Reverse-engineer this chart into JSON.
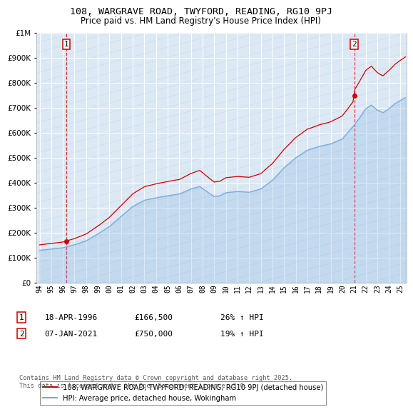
{
  "title": "108, WARGRAVE ROAD, TWYFORD, READING, RG10 9PJ",
  "subtitle": "Price paid vs. HM Land Registry's House Price Index (HPI)",
  "legend_line1": "108, WARGRAVE ROAD, TWYFORD, READING, RG10 9PJ (detached house)",
  "legend_line2": "HPI: Average price, detached house, Wokingham",
  "annotation1_date": "18-APR-1996",
  "annotation1_price": "£166,500",
  "annotation1_hpi": "26% ↑ HPI",
  "annotation2_date": "07-JAN-2021",
  "annotation2_price": "£750,000",
  "annotation2_hpi": "19% ↑ HPI",
  "price_color": "#cc0000",
  "hpi_color": "#7aabdb",
  "background_color": "#ffffff",
  "plot_bg_color": "#dce9f5",
  "grid_color": "#ffffff",
  "ylim": [
    0,
    1000000
  ],
  "xlim": [
    1993.7,
    2025.5
  ],
  "footnote": "Contains HM Land Registry data © Crown copyright and database right 2025.\nThis data is licensed under the Open Government Licence v3.0.",
  "sale1_x": 1996.29,
  "sale1_y": 166500,
  "sale2_x": 2021.02,
  "sale2_y": 750000
}
